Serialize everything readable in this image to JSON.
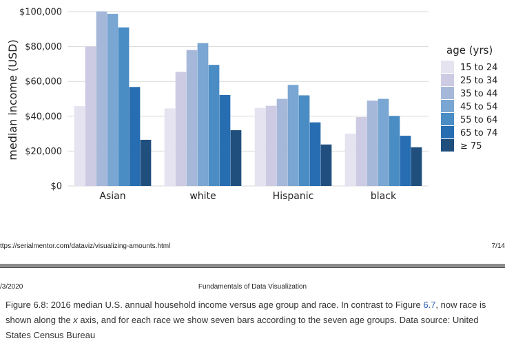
{
  "chart_data": {
    "type": "bar",
    "ylabel": "median income (USD)",
    "ylim": [
      0,
      100000
    ],
    "yticks": [
      0,
      20000,
      40000,
      60000,
      80000,
      100000
    ],
    "ytick_labels": [
      "$0",
      "$20,000",
      "$40,000",
      "$60,000",
      "$80,000",
      "$100,000"
    ],
    "grid": true,
    "categories": [
      "Asian",
      "white",
      "Hispanic",
      "black"
    ],
    "legend": {
      "title": "age (yrs)",
      "placement": "right"
    },
    "series": [
      {
        "name": "15 to 24",
        "color": "#e6e3f1",
        "values": [
          45800,
          44500,
          44800,
          30000
        ]
      },
      {
        "name": "25 to 34",
        "color": "#cdcbe3",
        "values": [
          80000,
          65500,
          46000,
          39500
        ]
      },
      {
        "name": "35 to 44",
        "color": "#a6b8da",
        "values": [
          100200,
          78000,
          50000,
          49000
        ]
      },
      {
        "name": "45 to 54",
        "color": "#79a6d2",
        "values": [
          98800,
          82000,
          58000,
          50000
        ]
      },
      {
        "name": "55 to 64",
        "color": "#4a8cc4",
        "values": [
          91000,
          69500,
          52000,
          40200
        ]
      },
      {
        "name": "65 to 74",
        "color": "#276db1",
        "values": [
          56800,
          52200,
          36500,
          28800
        ]
      },
      {
        "name": "≥ 75",
        "color": "#204f7e",
        "values": [
          26500,
          32000,
          23800,
          22200
        ]
      }
    ]
  },
  "footer": {
    "url": "ttps://serialmentor.com/dataviz/visualizing-amounts.html",
    "page": "7/14"
  },
  "header": {
    "date": "/3/2020",
    "title": "Fundamentals of Data Visualization"
  },
  "caption": {
    "part1": "Figure 6.8: 2016 median U.S. annual household income versus age group and race. In contrast to Figure ",
    "ref": "6.7",
    "part2": ", now race is shown along the ",
    "axis_var": "x",
    "part3": " axis, and for each race we show seven bars according to the seven age groups. Data source: United States Census Bureau"
  }
}
